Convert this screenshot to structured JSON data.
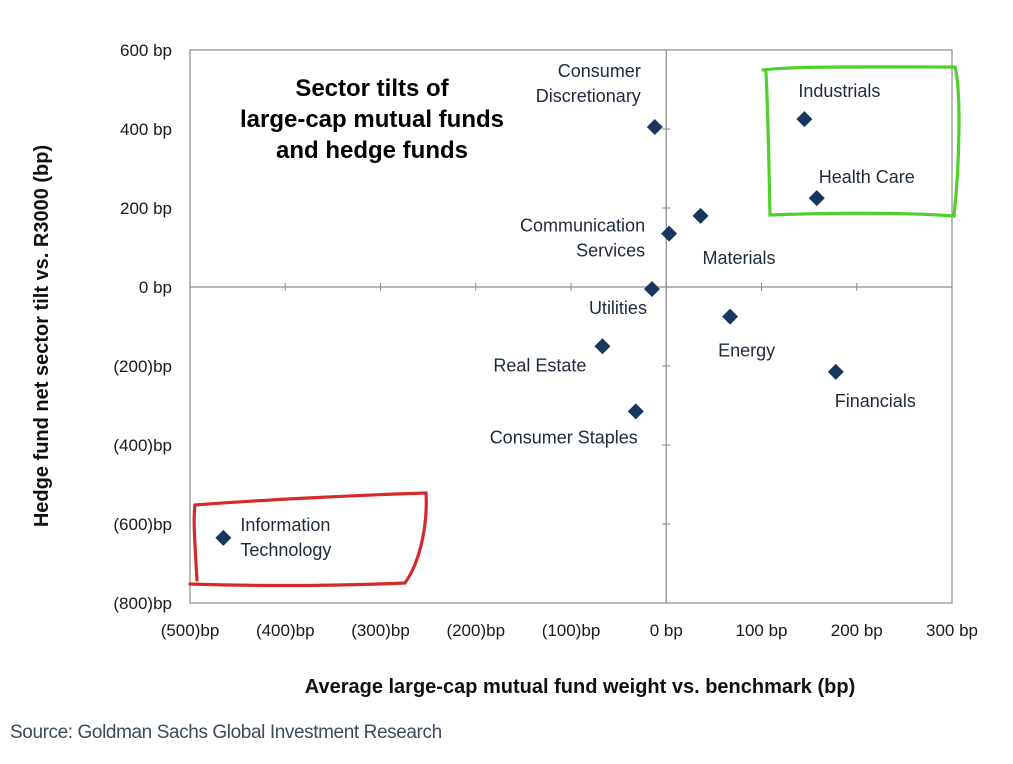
{
  "chart_data": {
    "type": "scatter",
    "title_lines": [
      "Sector tilts of",
      "large-cap mutual funds",
      "and hedge funds"
    ],
    "xlabel": "Average large-cap mutual fund weight vs. benchmark (bp)",
    "ylabel": "Hedge fund net sector tilt vs. R3000 (bp)",
    "xlim": [
      -500,
      300
    ],
    "ylim": [
      -800,
      600
    ],
    "x_ticks": [
      {
        "value": -500,
        "label": "(500)bp"
      },
      {
        "value": -400,
        "label": "(400)bp"
      },
      {
        "value": -300,
        "label": "(300)bp"
      },
      {
        "value": -200,
        "label": "(200)bp"
      },
      {
        "value": -100,
        "label": "(100)bp"
      },
      {
        "value": 0,
        "label": "0 bp"
      },
      {
        "value": 100,
        "label": "100 bp"
      },
      {
        "value": 200,
        "label": "200 bp"
      },
      {
        "value": 300,
        "label": "300 bp"
      }
    ],
    "y_ticks": [
      {
        "value": 600,
        "label": "600 bp"
      },
      {
        "value": 400,
        "label": "400 bp"
      },
      {
        "value": 200,
        "label": "200 bp"
      },
      {
        "value": 0,
        "label": "0 bp"
      },
      {
        "value": -200,
        "label": "(200)bp"
      },
      {
        "value": -400,
        "label": "(400)bp"
      },
      {
        "value": -600,
        "label": "(600)bp"
      },
      {
        "value": -800,
        "label": "(800)bp"
      }
    ],
    "grid": false,
    "marker_color": "#17375e",
    "points": [
      {
        "label": [
          "Consumer",
          "Discretionary"
        ],
        "x": -12,
        "y": 405
      },
      {
        "label": [
          "Industrials"
        ],
        "x": 145,
        "y": 425
      },
      {
        "label": [
          "Health Care"
        ],
        "x": 158,
        "y": 225
      },
      {
        "label": [
          "Materials"
        ],
        "x": 36,
        "y": 180
      },
      {
        "label": [
          "Communication",
          "Services"
        ],
        "x": 3,
        "y": 135
      },
      {
        "label": [
          "Utilities"
        ],
        "x": -15,
        "y": -5
      },
      {
        "label": [
          "Energy"
        ],
        "x": 67,
        "y": -75
      },
      {
        "label": [
          "Real Estate"
        ],
        "x": -67,
        "y": -150
      },
      {
        "label": [
          "Financials"
        ],
        "x": 178,
        "y": -215
      },
      {
        "label": [
          "Consumer Staples"
        ],
        "x": -32,
        "y": -315
      },
      {
        "label": [
          "Information",
          "Technology"
        ],
        "x": -465,
        "y": -635
      }
    ],
    "highlights": [
      {
        "color": "#4fd12a",
        "around": "Industrials, Health Care"
      },
      {
        "color": "#d42a2a",
        "around": "Information Technology"
      }
    ]
  },
  "source": "Source: Goldman Sachs Global Investment Research"
}
